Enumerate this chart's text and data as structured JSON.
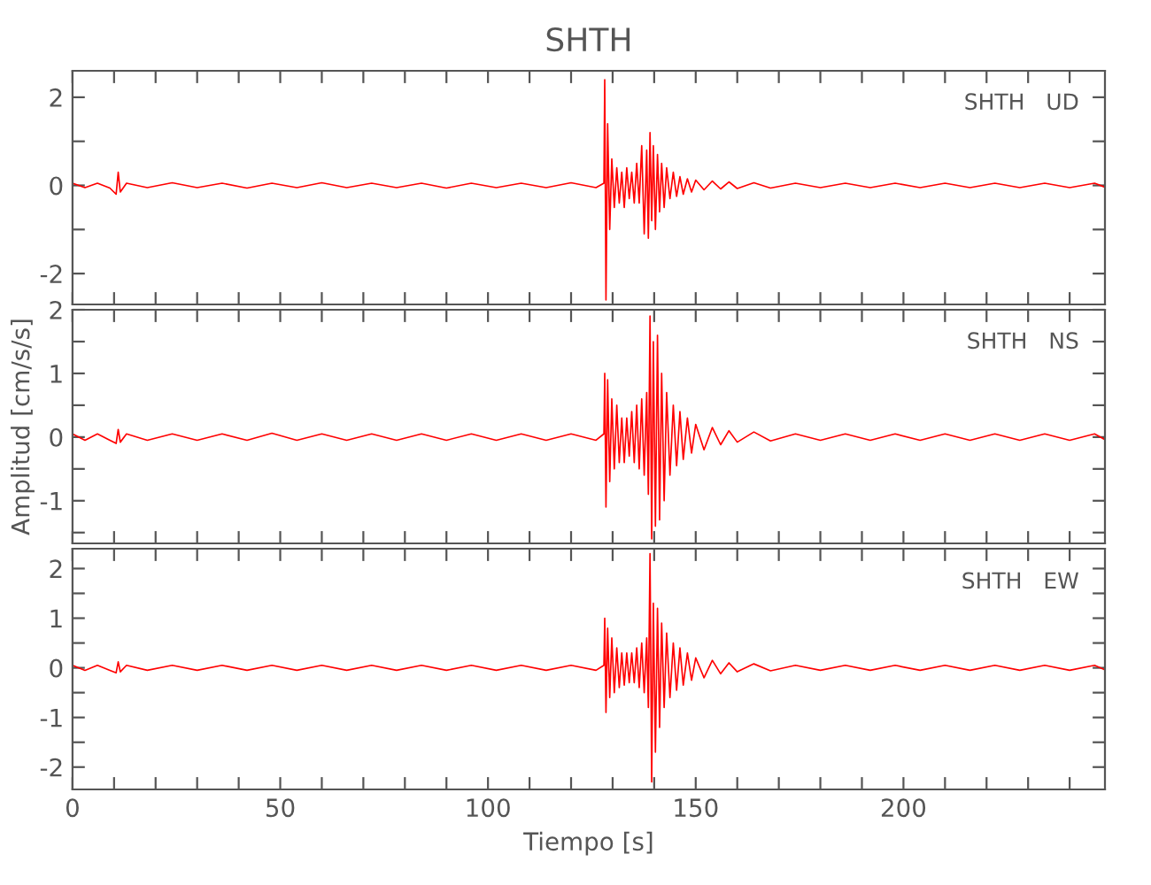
{
  "chart_data": [
    {
      "type": "line",
      "title": "SHTH",
      "annotations": [
        "SHTH   UD"
      ],
      "tick_labels": "y",
      "grid": false,
      "marker": "none",
      "line_style": "solid",
      "x": [
        0,
        3,
        6,
        9,
        10.5,
        11,
        11.5,
        13,
        18,
        24,
        30,
        36,
        42,
        48,
        54,
        60,
        66,
        72,
        78,
        84,
        90,
        96,
        102,
        108,
        114,
        120,
        126,
        127.9,
        128.1,
        128.4,
        128.8,
        129.3,
        129.8,
        130.4,
        131,
        131.6,
        132.2,
        132.8,
        133.4,
        134,
        134.6,
        135.2,
        135.8,
        136.4,
        137,
        137.6,
        138.2,
        138.6,
        139,
        139.4,
        139.8,
        140.3,
        140.8,
        141.3,
        141.8,
        142.4,
        143,
        143.8,
        144.6,
        145.4,
        146.2,
        147,
        148,
        149,
        150,
        152,
        154,
        156,
        158,
        160,
        164,
        168,
        174,
        180,
        186,
        192,
        198,
        204,
        210,
        216,
        222,
        228,
        234,
        240,
        246,
        248.5
      ],
      "series": [
        {
          "color": "#ff0000",
          "values": [
            0.05,
            -0.05,
            0.05,
            -0.06,
            -0.2,
            0.3,
            -0.15,
            0.05,
            -0.05,
            0.06,
            -0.05,
            0.05,
            -0.06,
            0.05,
            -0.05,
            0.06,
            -0.05,
            0.05,
            -0.05,
            0.05,
            -0.06,
            0.05,
            -0.05,
            0.05,
            -0.05,
            0.06,
            -0.05,
            0.05,
            2.4,
            -2.6,
            1.4,
            -1.0,
            0.6,
            -0.5,
            0.4,
            -0.4,
            0.3,
            -0.5,
            0.4,
            -0.3,
            0.3,
            -0.4,
            0.5,
            -0.4,
            0.9,
            -1.1,
            0.8,
            -1.2,
            1.2,
            -0.8,
            0.9,
            -1.0,
            0.7,
            -0.6,
            0.5,
            -0.5,
            0.4,
            -0.3,
            0.3,
            -0.25,
            0.2,
            -0.2,
            0.15,
            -0.15,
            0.12,
            -0.1,
            0.1,
            -0.08,
            0.08,
            -0.07,
            0.06,
            -0.06,
            0.05,
            -0.05,
            0.05,
            -0.05,
            0.05,
            -0.05,
            0.05,
            -0.05,
            0.05,
            -0.05,
            0.05,
            -0.05,
            0.05,
            -0.04
          ]
        }
      ],
      "xlim": [
        0,
        248.5
      ],
      "xticks": [
        {
          "value": 0,
          "label": null
        },
        {
          "value": 10,
          "label": null
        },
        {
          "value": 20,
          "label": null
        },
        {
          "value": 30,
          "label": null
        },
        {
          "value": 40,
          "label": null
        },
        {
          "value": 50,
          "label": null
        },
        {
          "value": 60,
          "label": null
        },
        {
          "value": 70,
          "label": null
        },
        {
          "value": 80,
          "label": null
        },
        {
          "value": 90,
          "label": null
        },
        {
          "value": 100,
          "label": null
        },
        {
          "value": 110,
          "label": null
        },
        {
          "value": 120,
          "label": null
        },
        {
          "value": 130,
          "label": null
        },
        {
          "value": 140,
          "label": null
        },
        {
          "value": 150,
          "label": null
        },
        {
          "value": 160,
          "label": null
        },
        {
          "value": 170,
          "label": null
        },
        {
          "value": 180,
          "label": null
        },
        {
          "value": 190,
          "label": null
        },
        {
          "value": 200,
          "label": null
        },
        {
          "value": 210,
          "label": null
        },
        {
          "value": 220,
          "label": null
        },
        {
          "value": 230,
          "label": null
        },
        {
          "value": 240,
          "label": null
        }
      ],
      "ylim": [
        -2.7,
        2.6
      ],
      "yticks": [
        -2,
        {
          "value": -1,
          "label": null
        },
        0,
        {
          "value": 1,
          "label": null
        },
        2
      ]
    },
    {
      "type": "line",
      "ylabel": "Amplitud [cm/s/s]",
      "annotations": [
        "SHTH   NS"
      ],
      "tick_labels": "y",
      "grid": false,
      "marker": "none",
      "line_style": "solid",
      "x": [
        0,
        3,
        6,
        9,
        10.5,
        11,
        11.5,
        13,
        18,
        24,
        30,
        36,
        42,
        48,
        54,
        60,
        66,
        72,
        78,
        84,
        90,
        96,
        102,
        108,
        114,
        120,
        126,
        127.9,
        128.1,
        128.4,
        128.8,
        129.3,
        129.8,
        130.4,
        131,
        131.6,
        132.2,
        132.8,
        133.4,
        134,
        134.6,
        135.2,
        135.8,
        136.4,
        137,
        137.6,
        138.2,
        138.6,
        139,
        139.4,
        139.8,
        140.3,
        140.8,
        141.3,
        141.8,
        142.4,
        143,
        143.8,
        144.6,
        145.4,
        146.2,
        147,
        148,
        149,
        150,
        152,
        154,
        156,
        158,
        160,
        164,
        168,
        174,
        180,
        186,
        192,
        198,
        204,
        210,
        216,
        222,
        228,
        234,
        240,
        246,
        248.5
      ],
      "series": [
        {
          "color": "#ff0000",
          "values": [
            0.05,
            -0.05,
            0.05,
            -0.05,
            -0.1,
            0.12,
            -0.08,
            0.05,
            -0.05,
            0.05,
            -0.05,
            0.05,
            -0.05,
            0.06,
            -0.05,
            0.05,
            -0.05,
            0.05,
            -0.05,
            0.05,
            -0.05,
            0.05,
            -0.05,
            0.05,
            -0.05,
            0.05,
            -0.05,
            0.05,
            1.0,
            -1.1,
            0.9,
            -0.7,
            0.6,
            -0.5,
            0.5,
            -0.4,
            0.3,
            -0.4,
            0.3,
            -0.3,
            0.4,
            -0.4,
            0.5,
            -0.5,
            0.6,
            -0.6,
            0.7,
            -0.9,
            1.9,
            -1.6,
            1.5,
            -1.4,
            1.6,
            -1.3,
            1.0,
            -1.0,
            0.7,
            -0.6,
            0.5,
            -0.45,
            0.4,
            -0.35,
            0.3,
            -0.25,
            0.2,
            -0.2,
            0.15,
            -0.12,
            0.1,
            -0.08,
            0.08,
            -0.06,
            0.05,
            -0.05,
            0.05,
            -0.05,
            0.05,
            -0.05,
            0.05,
            -0.05,
            0.05,
            -0.05,
            0.05,
            -0.05,
            0.05,
            -0.04
          ]
        }
      ],
      "xlim": [
        0,
        248.5
      ],
      "xticks": [
        {
          "value": 0,
          "label": null
        },
        {
          "value": 10,
          "label": null
        },
        {
          "value": 20,
          "label": null
        },
        {
          "value": 30,
          "label": null
        },
        {
          "value": 40,
          "label": null
        },
        {
          "value": 50,
          "label": null
        },
        {
          "value": 60,
          "label": null
        },
        {
          "value": 70,
          "label": null
        },
        {
          "value": 80,
          "label": null
        },
        {
          "value": 90,
          "label": null
        },
        {
          "value": 100,
          "label": null
        },
        {
          "value": 110,
          "label": null
        },
        {
          "value": 120,
          "label": null
        },
        {
          "value": 130,
          "label": null
        },
        {
          "value": 140,
          "label": null
        },
        {
          "value": 150,
          "label": null
        },
        {
          "value": 160,
          "label": null
        },
        {
          "value": 170,
          "label": null
        },
        {
          "value": 180,
          "label": null
        },
        {
          "value": 190,
          "label": null
        },
        {
          "value": 200,
          "label": null
        },
        {
          "value": 210,
          "label": null
        },
        {
          "value": 220,
          "label": null
        },
        {
          "value": 230,
          "label": null
        },
        {
          "value": 240,
          "label": null
        }
      ],
      "ylim": [
        -1.67,
        2
      ],
      "yticks": [
        {
          "value": -1.5,
          "label": null
        },
        -1,
        {
          "value": -0.5,
          "label": null
        },
        0,
        {
          "value": 0.5,
          "label": null
        },
        1,
        {
          "value": 1.5,
          "label": null
        },
        2
      ]
    },
    {
      "type": "line",
      "xlabel": "Tiempo [s]",
      "annotations": [
        "SHTH   EW"
      ],
      "grid": false,
      "marker": "none",
      "line_style": "solid",
      "x": [
        0,
        3,
        6,
        9,
        10.5,
        11,
        11.5,
        13,
        18,
        24,
        30,
        36,
        42,
        48,
        54,
        60,
        66,
        72,
        78,
        84,
        90,
        96,
        102,
        108,
        114,
        120,
        126,
        127.9,
        128.1,
        128.4,
        128.8,
        129.3,
        129.8,
        130.4,
        131,
        131.6,
        132.2,
        132.8,
        133.4,
        134,
        134.6,
        135.2,
        135.8,
        136.4,
        137,
        137.6,
        138.2,
        138.6,
        139,
        139.4,
        139.8,
        140.3,
        140.8,
        141.3,
        141.8,
        142.4,
        143,
        143.8,
        144.6,
        145.4,
        146.2,
        147,
        148,
        149,
        150,
        152,
        154,
        156,
        158,
        160,
        164,
        168,
        174,
        180,
        186,
        192,
        198,
        204,
        210,
        216,
        222,
        228,
        234,
        240,
        246,
        248.5
      ],
      "series": [
        {
          "color": "#ff0000",
          "values": [
            0.05,
            -0.05,
            0.05,
            -0.05,
            -0.1,
            0.12,
            -0.08,
            0.05,
            -0.05,
            0.05,
            -0.05,
            0.05,
            -0.05,
            0.05,
            -0.05,
            0.05,
            -0.05,
            0.05,
            -0.05,
            0.05,
            -0.05,
            0.05,
            -0.05,
            0.05,
            -0.05,
            0.05,
            -0.05,
            0.05,
            1.0,
            -0.9,
            0.8,
            -0.6,
            0.6,
            -0.5,
            0.4,
            -0.4,
            0.3,
            -0.35,
            0.3,
            -0.3,
            0.3,
            -0.3,
            0.4,
            -0.4,
            0.5,
            -0.5,
            0.6,
            -0.8,
            2.3,
            -2.3,
            1.3,
            -1.7,
            1.2,
            -1.2,
            0.9,
            -0.8,
            0.7,
            -0.6,
            0.5,
            -0.45,
            0.4,
            -0.35,
            0.3,
            -0.25,
            0.2,
            -0.2,
            0.15,
            -0.12,
            0.1,
            -0.08,
            0.08,
            -0.06,
            0.05,
            -0.05,
            0.05,
            -0.05,
            0.05,
            -0.05,
            0.05,
            -0.05,
            0.05,
            -0.05,
            0.05,
            -0.05,
            0.05,
            -0.04
          ]
        }
      ],
      "xlim": [
        0,
        248.5
      ],
      "xticks": [
        0,
        {
          "value": 10,
          "label": null
        },
        {
          "value": 20,
          "label": null
        },
        {
          "value": 30,
          "label": null
        },
        {
          "value": 40,
          "label": null
        },
        50,
        {
          "value": 60,
          "label": null
        },
        {
          "value": 70,
          "label": null
        },
        {
          "value": 80,
          "label": null
        },
        {
          "value": 90,
          "label": null
        },
        100,
        {
          "value": 110,
          "label": null
        },
        {
          "value": 120,
          "label": null
        },
        {
          "value": 130,
          "label": null
        },
        {
          "value": 140,
          "label": null
        },
        150,
        {
          "value": 160,
          "label": null
        },
        {
          "value": 170,
          "label": null
        },
        {
          "value": 180,
          "label": null
        },
        {
          "value": 190,
          "label": null
        },
        200,
        {
          "value": 210,
          "label": null
        },
        {
          "value": 220,
          "label": null
        },
        {
          "value": 230,
          "label": null
        },
        {
          "value": 240,
          "label": null
        }
      ],
      "ylim": [
        -2.45,
        2.4
      ],
      "yticks": [
        -2,
        {
          "value": -1.5,
          "label": null
        },
        -1,
        {
          "value": -0.5,
          "label": null
        },
        0,
        {
          "value": 0.5,
          "label": null
        },
        1,
        {
          "value": 1.5,
          "label": null
        },
        2
      ]
    }
  ]
}
